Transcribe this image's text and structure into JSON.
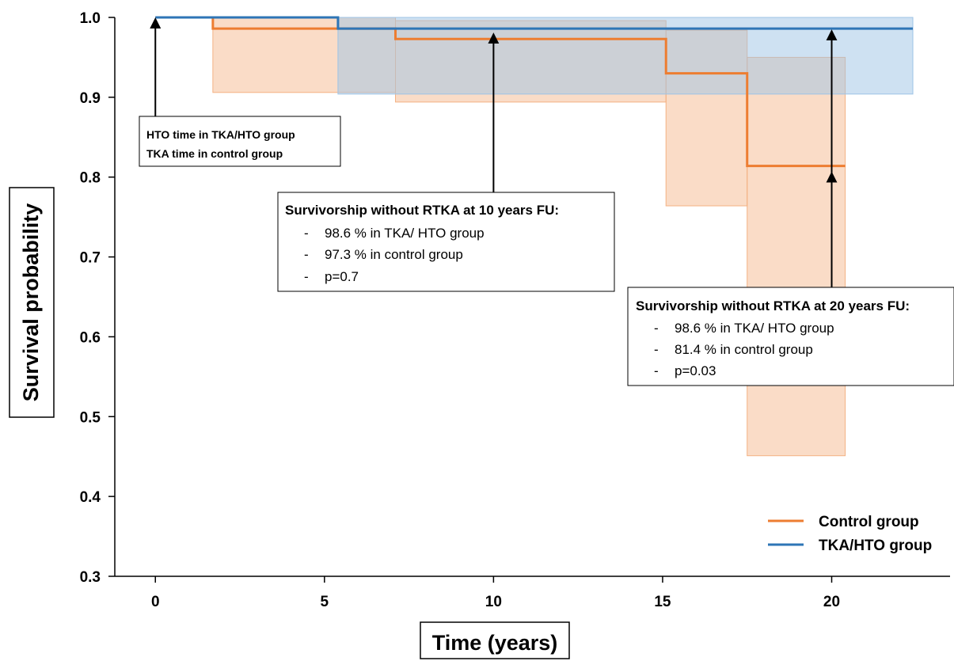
{
  "chart_data": {
    "type": "line",
    "xlabel": "Time (years)",
    "ylabel": "Survival probability",
    "xlim": [
      -1.2,
      23.5
    ],
    "ylim": [
      0.3,
      1.0
    ],
    "x_ticks": [
      "0",
      "5",
      "10",
      "15",
      "20"
    ],
    "x_tick_values": [
      0,
      5,
      10,
      15,
      20
    ],
    "y_ticks": [
      "1.0",
      "0.9",
      "0.8",
      "0.7",
      "0.6",
      "0.5",
      "0.4",
      "0.3"
    ],
    "y_tick_values": [
      1.0,
      0.9,
      0.8,
      0.7,
      0.6,
      0.5,
      0.4,
      0.3
    ],
    "series": [
      {
        "name": "Control group",
        "color": "#ed7d31",
        "band_color": "#f4b183",
        "steps": [
          [
            0,
            1.0
          ],
          [
            1.7,
            0.986
          ],
          [
            7.1,
            0.973
          ],
          [
            15.1,
            0.93
          ],
          [
            17.5,
            0.814
          ]
        ],
        "end_x": 20.4,
        "ci": [
          {
            "x0": 1.7,
            "x1": 7.1,
            "lo": 0.906,
            "hi": 1.0
          },
          {
            "x0": 7.1,
            "x1": 15.1,
            "lo": 0.894,
            "hi": 0.996
          },
          {
            "x0": 15.1,
            "x1": 17.5,
            "lo": 0.764,
            "hi": 0.984
          },
          {
            "x0": 17.5,
            "x1": 20.4,
            "lo": 0.451,
            "hi": 0.95
          }
        ]
      },
      {
        "name": "TKA/HTO group",
        "color": "#2e75b6",
        "band_color": "#9dc3e6",
        "steps": [
          [
            0,
            1.0
          ],
          [
            5.4,
            0.986
          ]
        ],
        "end_x": 22.4,
        "ci": [
          {
            "x0": 5.4,
            "x1": 22.4,
            "lo": 0.904,
            "hi": 1.0
          }
        ]
      }
    ],
    "annotations": {
      "box1": {
        "lines": [
          "HTO time in TKA/HTO group",
          "TKA time in control group"
        ]
      },
      "box2": {
        "title": "Survivorship without RTKA at 10 years FU:",
        "items": [
          "98.6 % in TKA/ HTO group",
          "97.3 % in control group",
          "p=0.7"
        ]
      },
      "box3": {
        "title": "Survivorship without RTKA at 20 years FU:",
        "items": [
          "98.6 % in TKA/ HTO group",
          "81.4 % in control group",
          "p=0.03"
        ]
      }
    },
    "legend": {
      "position": "bottom-right",
      "entries": [
        "Control group",
        "TKA/HTO group"
      ]
    }
  }
}
